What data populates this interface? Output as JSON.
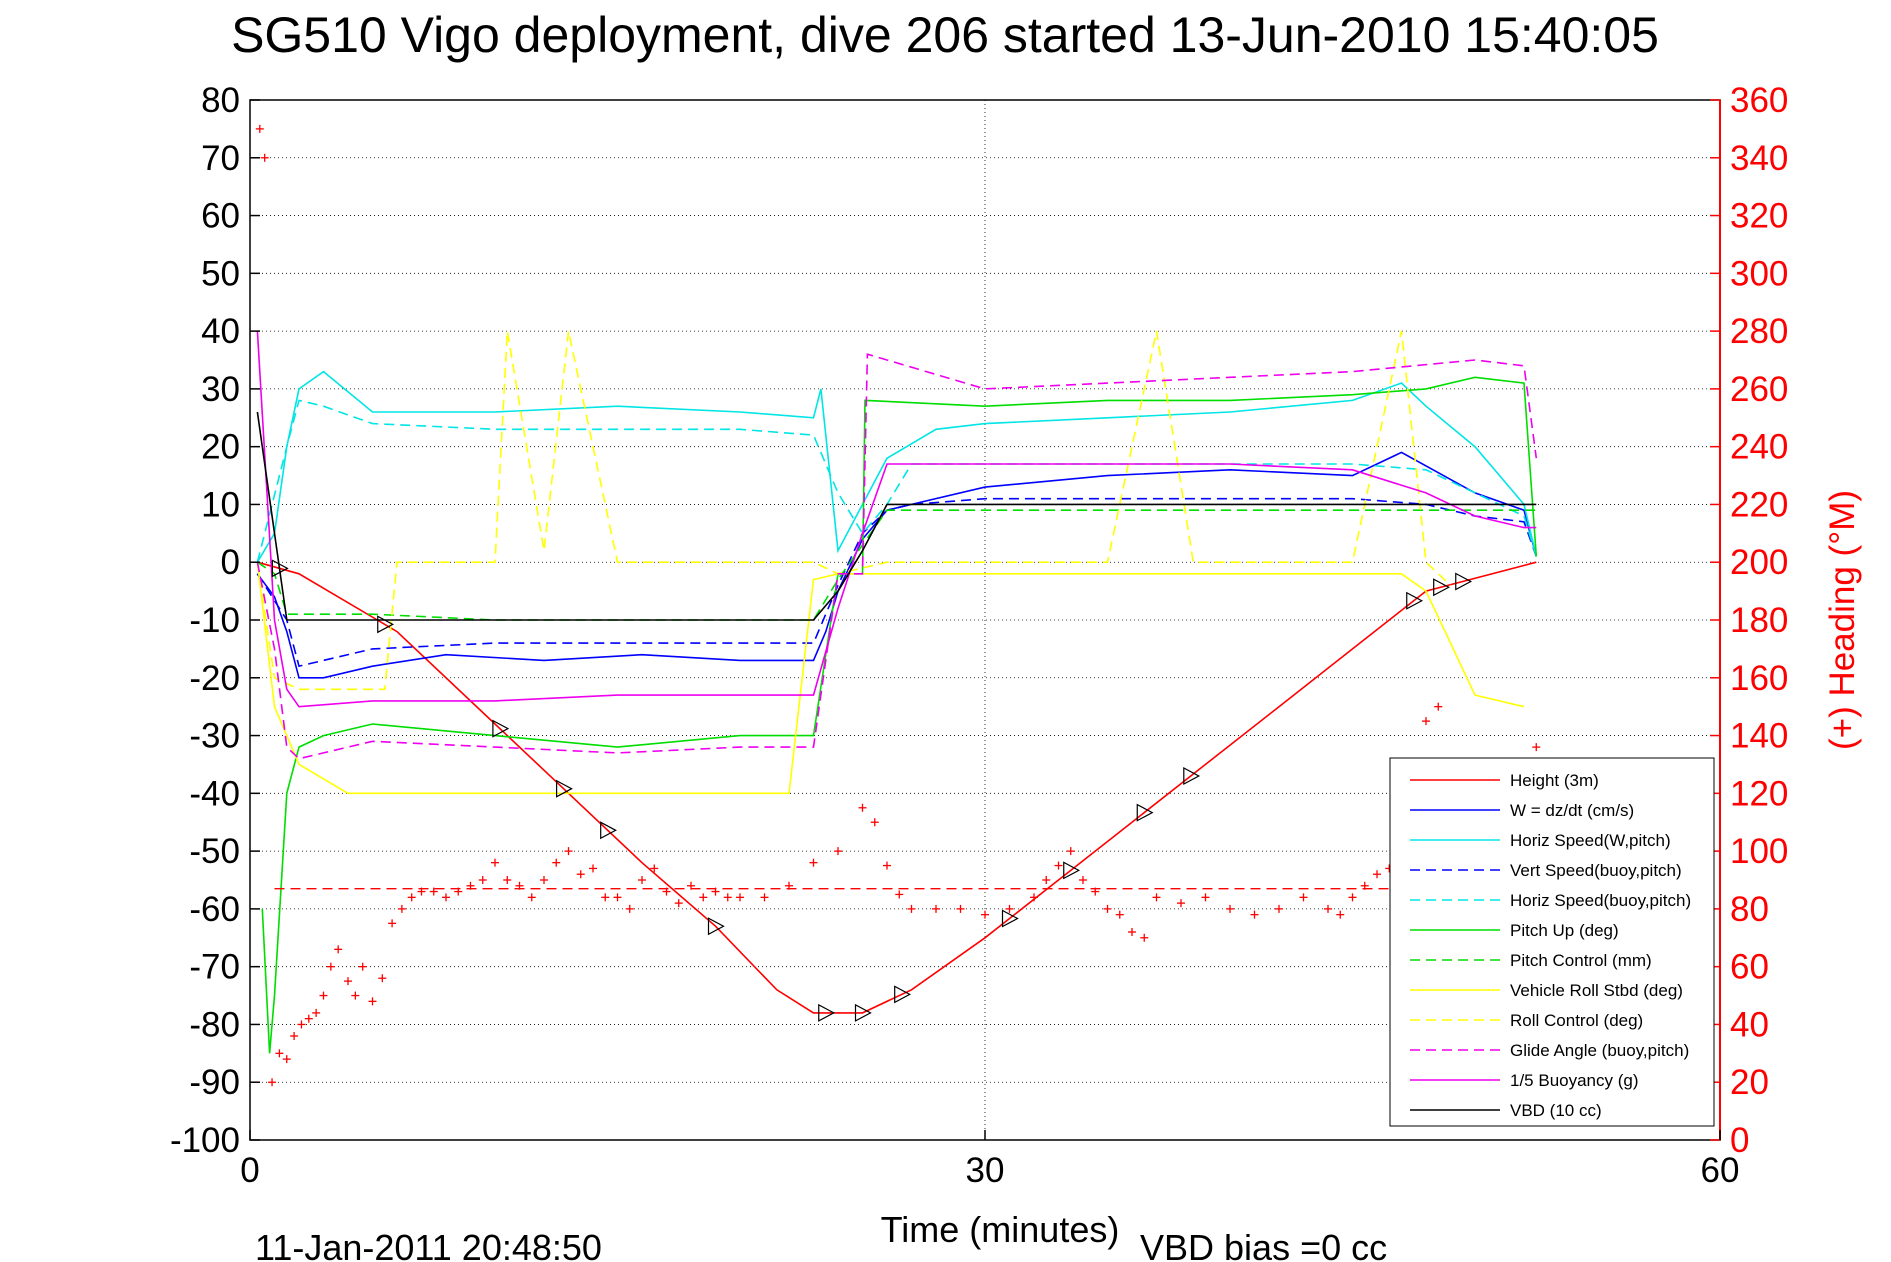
{
  "chart_data": {
    "type": "line",
    "title": "SG510 Vigo deployment, dive 206 started 13-Jun-2010 15:40:05",
    "xlabel": "Time (minutes)",
    "ylabel": "",
    "y2label": "(+) Heading (°M)",
    "xlim": [
      0,
      60
    ],
    "ylim": [
      -100,
      80
    ],
    "y2lim": [
      0,
      360
    ],
    "x_ticks": [
      "0",
      "30",
      "60"
    ],
    "y_ticks": [
      "80",
      "70",
      "60",
      "50",
      "40",
      "30",
      "20",
      "10",
      "0",
      "-10",
      "-20",
      "-30",
      "-40",
      "-50",
      "-60",
      "-70",
      "-80",
      "-90",
      "-100"
    ],
    "y2_ticks": [
      "360",
      "340",
      "320",
      "300",
      "280",
      "260",
      "240",
      "220",
      "200",
      "180",
      "160",
      "140",
      "120",
      "100",
      "80",
      "60",
      "40",
      "20",
      "0"
    ],
    "grid": true,
    "legend_position": "bottom-right",
    "series": [
      {
        "name": "Height (3m)",
        "color": "#ff0000",
        "dash": "solid",
        "x": [
          0.3,
          2,
          6,
          10,
          13,
          16,
          19,
          21.5,
          23,
          25,
          27,
          30,
          33,
          36,
          39,
          42,
          45,
          48,
          52.5
        ],
        "y": [
          0,
          -2,
          -12,
          -28,
          -40,
          -52,
          -63,
          -74,
          -78,
          -78,
          -74,
          -65,
          -55,
          -45,
          -35,
          -25,
          -15,
          -5,
          0
        ]
      },
      {
        "name": "W = dz/dt (cm/s)",
        "color": "#0000ff",
        "dash": "solid",
        "x": [
          0.3,
          1,
          1.5,
          2,
          3,
          5,
          8,
          12,
          16,
          20,
          23,
          23.5,
          24,
          25,
          26,
          27,
          30,
          35,
          40,
          45,
          47,
          50,
          52,
          52.5
        ],
        "y": [
          -2,
          -6,
          -12,
          -20,
          -20,
          -18,
          -16,
          -17,
          -16,
          -17,
          -17,
          -12,
          -5,
          4,
          9,
          10,
          13,
          15,
          16,
          15,
          19,
          12,
          9,
          1
        ]
      },
      {
        "name": "Horiz Speed(W,pitch)",
        "color": "#00e5e5",
        "dash": "solid",
        "x": [
          0.3,
          1,
          1.5,
          2,
          3,
          5,
          10,
          15,
          20,
          23,
          23.3,
          24,
          25,
          26,
          28,
          30,
          35,
          40,
          45,
          47,
          48,
          50,
          52,
          52.5
        ],
        "y": [
          0,
          5,
          20,
          30,
          33,
          26,
          26,
          27,
          26,
          25,
          30,
          2,
          10,
          18,
          23,
          24,
          25,
          26,
          28,
          31,
          27,
          20,
          10,
          1
        ]
      },
      {
        "name": "Vert Speed(buoy,pitch)",
        "color": "#0000ff",
        "dash": "dashed",
        "x": [
          0.3,
          1.5,
          2,
          3,
          5,
          10,
          15,
          20,
          23,
          24,
          25,
          26,
          27,
          30,
          35,
          40,
          45,
          48,
          50,
          52,
          52.5
        ],
        "y": [
          -2,
          -10,
          -18,
          -17,
          -15,
          -14,
          -14,
          -14,
          -14,
          -4,
          5,
          9,
          10,
          11,
          11,
          11,
          11,
          10,
          8,
          7,
          1
        ]
      },
      {
        "name": "Horiz Speed(buoy,pitch)",
        "color": "#00e5e5",
        "dash": "dashed",
        "x": [
          0.3,
          1.5,
          2,
          3,
          5,
          10,
          15,
          20,
          23,
          24,
          25,
          26,
          27,
          30,
          35,
          40,
          45,
          48,
          50,
          52,
          52.5
        ],
        "y": [
          0,
          20,
          28,
          27,
          24,
          23,
          23,
          23,
          22,
          12,
          5,
          10,
          17,
          17,
          17,
          17,
          17,
          16,
          12,
          8,
          1
        ]
      },
      {
        "name": "Pitch Up (deg)",
        "color": "#00dd00",
        "dash": "solid",
        "x": [
          0.5,
          0.8,
          1,
          1.5,
          2,
          3,
          5,
          10,
          15,
          20,
          23,
          24,
          25,
          25.1,
          30,
          35,
          40,
          45,
          48,
          50,
          52,
          52.5
        ],
        "y": [
          -60,
          -85,
          -75,
          -40,
          -32,
          -30,
          -28,
          -30,
          -32,
          -30,
          -30,
          -2,
          -2,
          28,
          27,
          28,
          28,
          29,
          30,
          32,
          31,
          1
        ]
      },
      {
        "name": "Pitch Control (mm)",
        "color": "#00dd00",
        "dash": "dashed",
        "x": [
          0.3,
          1,
          1.5,
          5,
          10,
          15,
          20,
          23,
          24,
          25,
          26,
          30,
          35,
          40,
          45,
          50,
          52.5
        ],
        "y": [
          0,
          -2,
          -9,
          -9,
          -10,
          -10,
          -10,
          -10,
          -3,
          3,
          9,
          9,
          9,
          9,
          9,
          9,
          9
        ]
      },
      {
        "name": "Vehicle Roll Stbd (deg)",
        "color": "#ffff00",
        "dash": "solid",
        "x": [
          0.3,
          1,
          2,
          4,
          6,
          10,
          15,
          20,
          22,
          23,
          24,
          26,
          30,
          33,
          35,
          38,
          40,
          45,
          47,
          48,
          50,
          52
        ],
        "y": [
          0,
          -25,
          -35,
          -40,
          -40,
          -40,
          -40,
          -40,
          -40,
          -3,
          -2,
          -2,
          -2,
          -2,
          -2,
          -2,
          -2,
          -2,
          -2,
          -5,
          -23,
          -25
        ]
      },
      {
        "name": "Roll Control (deg)",
        "color": "#ffff00",
        "dash": "dashed",
        "x": [
          0.3,
          1,
          2,
          5.5,
          6,
          10,
          10.5,
          12,
          13,
          15,
          20,
          23,
          24,
          26,
          30,
          33,
          35,
          37,
          38.5,
          40,
          45,
          47,
          48,
          49
        ],
        "y": [
          0,
          -20,
          -22,
          -22,
          0,
          0,
          40,
          2,
          40,
          0,
          0,
          0,
          -2,
          0,
          0,
          0,
          0,
          40,
          0,
          0,
          0,
          40,
          0,
          -4
        ]
      },
      {
        "name": "Glide Angle (buoy,pitch)",
        "color": "#ee00ee",
        "dash": "dashed",
        "x": [
          0.3,
          1,
          1.5,
          2,
          3,
          5,
          10,
          15,
          20,
          23,
          24,
          25,
          25.2,
          30,
          35,
          40,
          45,
          50,
          52,
          52.5
        ],
        "y": [
          0,
          -15,
          -32,
          -34,
          -33,
          -31,
          -32,
          -33,
          -32,
          -32,
          -2,
          -2,
          36,
          30,
          31,
          32,
          33,
          35,
          34,
          18
        ]
      },
      {
        "name": "1/5 Buoyancy (g)",
        "color": "#ee00ee",
        "dash": "solid",
        "x": [
          0.3,
          1,
          1.5,
          2,
          5,
          10,
          15,
          20,
          23,
          24,
          25,
          26,
          30,
          35,
          40,
          45,
          48,
          50,
          52,
          52.5
        ],
        "y": [
          40,
          -10,
          -22,
          -25,
          -24,
          -24,
          -23,
          -23,
          -23,
          -8,
          5,
          17,
          17,
          17,
          17,
          16,
          12,
          8,
          6,
          6
        ]
      },
      {
        "name": "VBD (10 cc)",
        "color": "#000000",
        "dash": "solid",
        "x": [
          0.3,
          1,
          1.5,
          2,
          10,
          20,
          23,
          24,
          25,
          26,
          30,
          40,
          50,
          52.5
        ],
        "y": [
          26,
          5,
          -10,
          -10,
          -10,
          -10,
          -10,
          -5,
          2,
          10,
          10,
          10,
          10,
          10
        ]
      }
    ],
    "heading_series": {
      "name": "(+) Heading",
      "color": "#ff0000",
      "marker": "+",
      "x": [
        0.4,
        0.6,
        0.9,
        1.2,
        1.5,
        1.8,
        2.1,
        2.4,
        2.7,
        3,
        3.3,
        3.6,
        4,
        4.3,
        4.6,
        5,
        5.4,
        5.8,
        6.2,
        6.6,
        7,
        7.5,
        8,
        8.5,
        9,
        9.5,
        10,
        10.5,
        11,
        11.5,
        12,
        12.5,
        13,
        13.5,
        14,
        14.5,
        15,
        15.5,
        16,
        16.5,
        17,
        17.5,
        18,
        18.5,
        19,
        19.5,
        20,
        21,
        22,
        23,
        24,
        25,
        25.5,
        26,
        26.5,
        27,
        28,
        29,
        30,
        31,
        32,
        32.5,
        33,
        33.5,
        34,
        34.5,
        35,
        35.5,
        36,
        36.5,
        37,
        38,
        39,
        40,
        41,
        42,
        43,
        44,
        44.5,
        45,
        45.5,
        46,
        46.5,
        47,
        47.5,
        48,
        48.5,
        49,
        52.5
      ],
      "y": [
        350,
        340,
        20,
        30,
        28,
        36,
        40,
        42,
        44,
        50,
        60,
        66,
        55,
        50,
        60,
        48,
        56,
        75,
        80,
        84,
        86,
        86,
        84,
        86,
        88,
        90,
        96,
        90,
        88,
        84,
        90,
        96,
        100,
        92,
        94,
        84,
        84,
        80,
        90,
        94,
        86,
        82,
        88,
        84,
        86,
        84,
        84,
        84,
        88,
        96,
        100,
        115,
        110,
        95,
        85,
        80,
        80,
        80,
        78,
        80,
        84,
        90,
        95,
        100,
        90,
        86,
        80,
        78,
        72,
        70,
        84,
        82,
        84,
        80,
        78,
        80,
        84,
        80,
        78,
        84,
        88,
        92,
        94,
        90,
        88,
        145,
        150,
        130,
        136
      ],
      "mean": 87
    }
  },
  "annotations": {
    "date_stamp": "11-Jan-2011 20:48:50",
    "vbd_bias": "VBD bias =0 cc"
  }
}
